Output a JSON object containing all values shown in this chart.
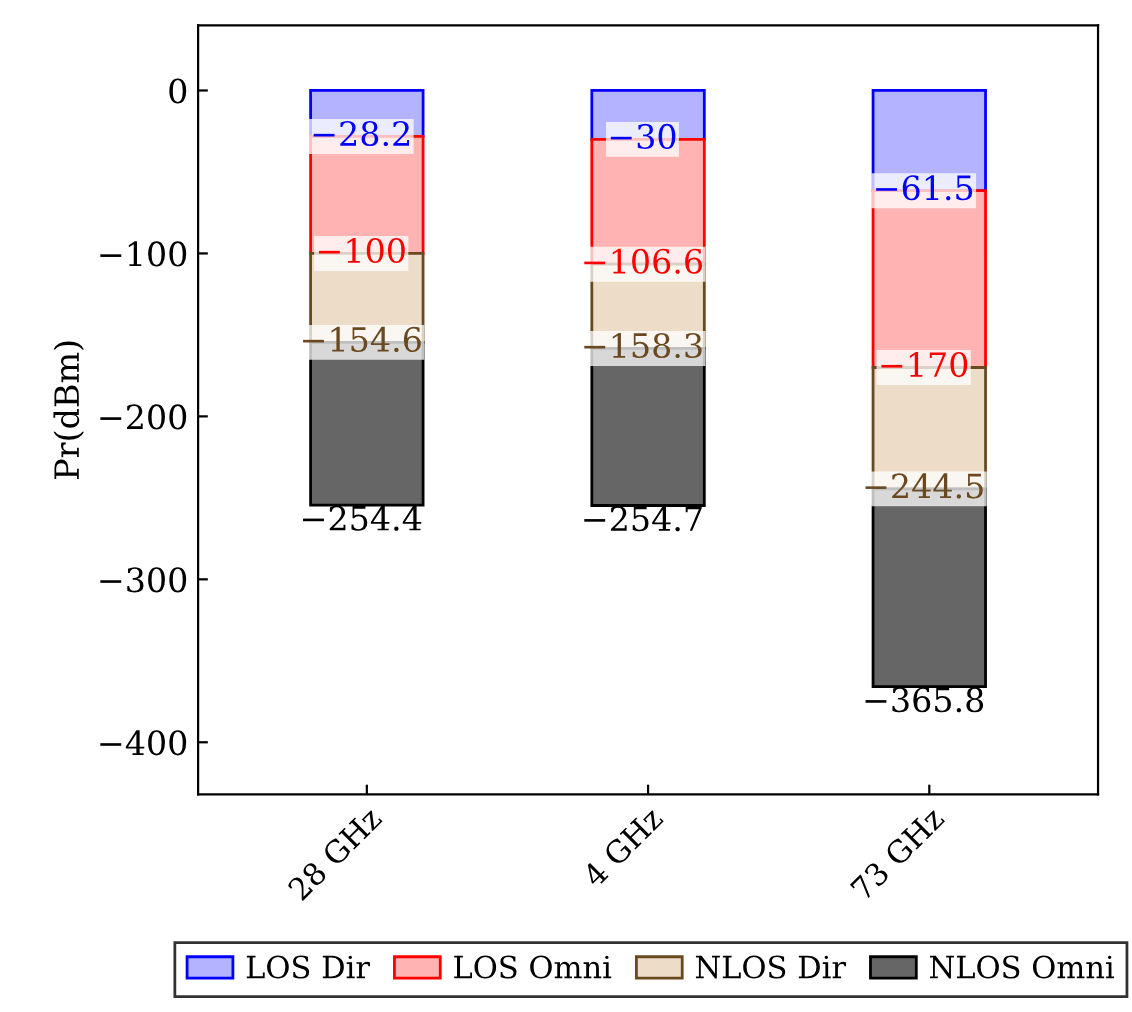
{
  "chart_data": {
    "type": "bar",
    "stacked": true,
    "ylabel": "Pr(dBm)",
    "categories": [
      "28 GHz",
      "4 GHz",
      "73 GHz"
    ],
    "series": [
      {
        "name": "LOS Dir",
        "color": "#b3b3ff",
        "values": [
          -28.2,
          -30,
          -61.5
        ]
      },
      {
        "name": "LOS Omni",
        "color": "#ffb3b3",
        "values": [
          -71.8,
          -76.6,
          -108.5
        ]
      },
      {
        "name": "NLOS Dir",
        "color": "#ecdcc8",
        "values": [
          -54.6,
          -51.7,
          -74.5
        ]
      },
      {
        "name": "NLOS Omni",
        "color": "#666666",
        "values": [
          -99.8,
          -96.4,
          -121.3
        ]
      }
    ],
    "annotations": [
      {
        "text": "−28.2",
        "x": "28 GHz",
        "y": -28.2
      },
      {
        "text": "−30",
        "x": "4 GHz",
        "y": -30
      },
      {
        "text": "−61.5",
        "x": "73 GHz",
        "y": -61.5
      },
      {
        "text": "−100",
        "x": "28 GHz",
        "y": -100
      },
      {
        "text": "−106.6",
        "x": "4 GHz",
        "y": -106.6
      },
      {
        "text": "−170",
        "x": "73 GHz",
        "y": -170
      },
      {
        "text": "−154.6",
        "x": "28 GHz",
        "y": -154.6
      },
      {
        "text": "−158.3",
        "x": "4 GHz",
        "y": -158.3
      },
      {
        "text": "−244.5",
        "x": "73 GHz",
        "y": -244.5
      },
      {
        "text": "−254.4",
        "x": "28 GHz",
        "y": -254.4
      },
      {
        "text": "−254.7",
        "x": "4 GHz",
        "y": -254.7
      },
      {
        "text": "−365.8",
        "x": "73 GHz",
        "y": -365.8
      }
    ],
    "ylim": [
      -432,
      40
    ],
    "yticks": [
      {
        "value": -400,
        "label": "−400"
      },
      {
        "value": -300,
        "label": "−300"
      },
      {
        "value": -200,
        "label": "−200"
      },
      {
        "value": -100,
        "label": "−100"
      },
      0
    ],
    "legend": "bottom",
    "grid": false
  }
}
